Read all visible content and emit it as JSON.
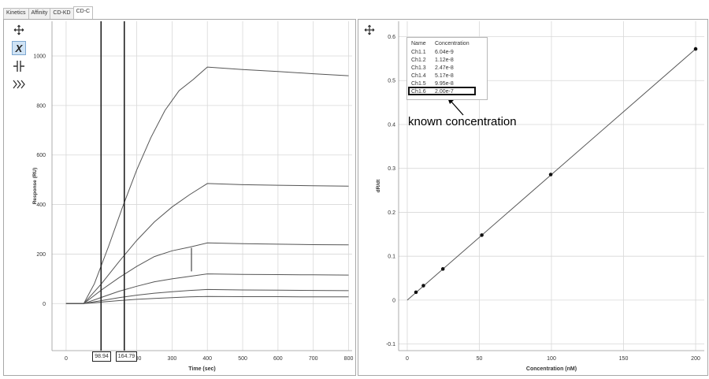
{
  "tabs": [
    {
      "label": "Kinetics",
      "active": false
    },
    {
      "label": "Affinity",
      "active": false
    },
    {
      "label": "CD-KD",
      "active": false
    },
    {
      "label": "CD-C",
      "active": true
    }
  ],
  "toolbar": {
    "move_icon": "move-arrows-icon",
    "x_label": "X",
    "cursor_icon": "vertical-cursor-icon",
    "expand_icon": "chevrons-right-icon"
  },
  "chart_data": [
    {
      "type": "line",
      "title": "",
      "xlabel": "Time (sec)",
      "ylabel": "Response (RU)",
      "xlim": [
        -40,
        810
      ],
      "ylim": [
        -190,
        1140
      ],
      "xticks": [
        0,
        100,
        200,
        300,
        400,
        500,
        600,
        700,
        800
      ],
      "yticks": [
        0,
        200,
        400,
        600,
        800,
        1000
      ],
      "grid": true,
      "cursors": [
        {
          "x": 98.94,
          "label": "98.94"
        },
        {
          "x": 164.79,
          "label": "164.79"
        }
      ],
      "series": [
        {
          "x": [
            0,
            50,
            80,
            120,
            160,
            200,
            240,
            280,
            320,
            360,
            400,
            500,
            600,
            700,
            800
          ],
          "y": [
            0,
            0,
            80,
            230,
            390,
            540,
            670,
            780,
            860,
            905,
            955,
            945,
            937,
            928,
            920
          ]
        },
        {
          "x": [
            0,
            50,
            100,
            150,
            200,
            250,
            300,
            350,
            400,
            500,
            600,
            700,
            800
          ],
          "y": [
            0,
            0,
            80,
            170,
            255,
            330,
            390,
            440,
            485,
            480,
            478,
            476,
            474
          ]
        },
        {
          "x": [
            0,
            50,
            100,
            150,
            200,
            250,
            300,
            350,
            400,
            500,
            600,
            700,
            800
          ],
          "y": [
            0,
            0,
            55,
            105,
            150,
            190,
            213,
            228,
            245,
            242,
            240,
            238,
            237
          ]
        },
        {
          "x": [
            0,
            50,
            100,
            150,
            200,
            250,
            300,
            350,
            400,
            500,
            600,
            700,
            800
          ],
          "y": [
            0,
            0,
            25,
            50,
            70,
            88,
            100,
            110,
            120,
            118,
            117,
            116,
            115
          ]
        },
        {
          "x": [
            0,
            50,
            100,
            150,
            200,
            250,
            300,
            350,
            400,
            500,
            600,
            700,
            800
          ],
          "y": [
            0,
            0,
            12,
            24,
            34,
            42,
            48,
            53,
            57,
            55,
            54,
            53,
            52
          ]
        },
        {
          "x": [
            0,
            50,
            100,
            150,
            200,
            250,
            300,
            350,
            400,
            500,
            600,
            700,
            800
          ],
          "y": [
            0,
            0,
            6,
            12,
            17,
            21,
            24,
            27,
            29,
            28,
            28,
            27,
            27
          ]
        }
      ]
    },
    {
      "type": "scatter",
      "title": "",
      "xlabel": "Concentration (nM)",
      "ylabel": "dR/dt",
      "xlim": [
        -6,
        206
      ],
      "ylim": [
        -0.115,
        0.635
      ],
      "xticks": [
        0,
        50,
        100,
        150,
        200
      ],
      "yticks": [
        -0.1,
        0,
        0.1,
        0.2,
        0.3,
        0.4,
        0.5,
        0.6
      ],
      "ytick_labels": [
        "-0.1",
        "0",
        "0.1",
        "0.2",
        "0.3",
        "0.4",
        "0.5",
        "0.6"
      ],
      "grid": true,
      "points": {
        "x": [
          6.04,
          11.2,
          24.7,
          51.7,
          99.5,
          200
        ],
        "y": [
          0.018,
          0.033,
          0.071,
          0.148,
          0.286,
          0.572
        ]
      },
      "fit_line": {
        "x": [
          0,
          200
        ],
        "y": [
          0,
          0.572
        ]
      },
      "legend": {
        "headers": [
          "Name",
          "Concentration"
        ],
        "rows": [
          {
            "name": "Ch1.1",
            "value": "6.04e-9"
          },
          {
            "name": "Ch1.2",
            "value": "1.12e-8"
          },
          {
            "name": "Ch1.3",
            "value": "2.47e-8"
          },
          {
            "name": "Ch1.4",
            "value": "5.17e-8"
          },
          {
            "name": "Ch1.5",
            "value": "9.95e-8"
          },
          {
            "name": "Ch1.6",
            "value": "2.00e-7"
          }
        ]
      },
      "annotation": "known concentration"
    }
  ],
  "colors": {
    "line": "#555555",
    "grid": "#d8d8d8",
    "point": "#111111",
    "active_tool": "#cfe3f5"
  }
}
